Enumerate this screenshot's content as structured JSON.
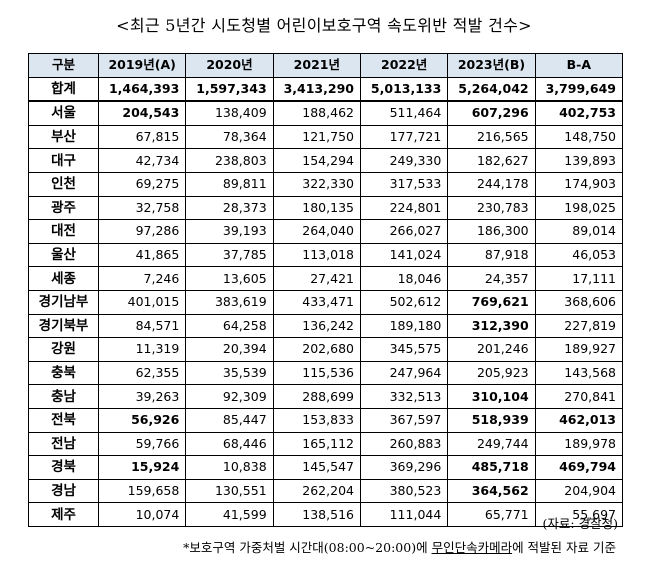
{
  "title": "<최근 5년간 시도청별 어린이보호구역 속도위반 적발 건수>",
  "table": {
    "headers": [
      "구분",
      "2019년(A)",
      "2020년",
      "2021년",
      "2022년",
      "2023년(B)",
      "B-A"
    ],
    "total": {
      "label": "합계",
      "values": [
        "1,464,393",
        "1,597,343",
        "3,413,290",
        "5,013,133",
        "5,264,042",
        "3,799,649"
      ]
    },
    "rows": [
      {
        "label": "서울",
        "values": [
          "204,543",
          "138,409",
          "188,462",
          "511,464",
          "607,296",
          "402,753"
        ],
        "bold": [
          true,
          false,
          false,
          false,
          true,
          true
        ]
      },
      {
        "label": "부산",
        "values": [
          "67,815",
          "78,364",
          "121,750",
          "177,721",
          "216,565",
          "148,750"
        ],
        "bold": [
          false,
          false,
          false,
          false,
          false,
          false
        ]
      },
      {
        "label": "대구",
        "values": [
          "42,734",
          "238,803",
          "154,294",
          "249,330",
          "182,627",
          "139,893"
        ],
        "bold": [
          false,
          false,
          false,
          false,
          false,
          false
        ]
      },
      {
        "label": "인천",
        "values": [
          "69,275",
          "89,811",
          "322,330",
          "317,533",
          "244,178",
          "174,903"
        ],
        "bold": [
          false,
          false,
          false,
          false,
          false,
          false
        ]
      },
      {
        "label": "광주",
        "values": [
          "32,758",
          "28,373",
          "180,135",
          "224,801",
          "230,783",
          "198,025"
        ],
        "bold": [
          false,
          false,
          false,
          false,
          false,
          false
        ]
      },
      {
        "label": "대전",
        "values": [
          "97,286",
          "39,193",
          "264,040",
          "266,027",
          "186,300",
          "89,014"
        ],
        "bold": [
          false,
          false,
          false,
          false,
          false,
          false
        ]
      },
      {
        "label": "울산",
        "values": [
          "41,865",
          "37,785",
          "113,018",
          "141,024",
          "87,918",
          "46,053"
        ],
        "bold": [
          false,
          false,
          false,
          false,
          false,
          false
        ]
      },
      {
        "label": "세종",
        "values": [
          "7,246",
          "13,605",
          "27,421",
          "18,046",
          "24,357",
          "17,111"
        ],
        "bold": [
          false,
          false,
          false,
          false,
          false,
          false
        ]
      },
      {
        "label": "경기남부",
        "values": [
          "401,015",
          "383,619",
          "433,471",
          "502,612",
          "769,621",
          "368,606"
        ],
        "bold": [
          false,
          false,
          false,
          false,
          true,
          false
        ]
      },
      {
        "label": "경기북부",
        "values": [
          "84,571",
          "64,258",
          "136,242",
          "189,180",
          "312,390",
          "227,819"
        ],
        "bold": [
          false,
          false,
          false,
          false,
          true,
          false
        ]
      },
      {
        "label": "강원",
        "values": [
          "11,319",
          "20,394",
          "202,680",
          "345,575",
          "201,246",
          "189,927"
        ],
        "bold": [
          false,
          false,
          false,
          false,
          false,
          false
        ]
      },
      {
        "label": "충북",
        "values": [
          "62,355",
          "35,539",
          "115,536",
          "247,964",
          "205,923",
          "143,568"
        ],
        "bold": [
          false,
          false,
          false,
          false,
          false,
          false
        ]
      },
      {
        "label": "충남",
        "values": [
          "39,263",
          "92,309",
          "288,699",
          "332,513",
          "310,104",
          "270,841"
        ],
        "bold": [
          false,
          false,
          false,
          false,
          true,
          false
        ]
      },
      {
        "label": "전북",
        "values": [
          "56,926",
          "85,447",
          "153,833",
          "367,597",
          "518,939",
          "462,013"
        ],
        "bold": [
          true,
          false,
          false,
          false,
          true,
          true
        ]
      },
      {
        "label": "전남",
        "values": [
          "59,766",
          "68,446",
          "165,112",
          "260,883",
          "249,744",
          "189,978"
        ],
        "bold": [
          false,
          false,
          false,
          false,
          false,
          false
        ]
      },
      {
        "label": "경북",
        "values": [
          "15,924",
          "10,838",
          "145,547",
          "369,296",
          "485,718",
          "469,794"
        ],
        "bold": [
          true,
          false,
          false,
          false,
          true,
          true
        ]
      },
      {
        "label": "경남",
        "values": [
          "159,658",
          "130,551",
          "262,204",
          "380,523",
          "364,562",
          "204,904"
        ],
        "bold": [
          false,
          false,
          false,
          false,
          true,
          false
        ]
      },
      {
        "label": "제주",
        "values": [
          "10,074",
          "41,599",
          "138,516",
          "111,044",
          "65,771",
          "55,697"
        ],
        "bold": [
          false,
          false,
          false,
          false,
          false,
          false
        ]
      }
    ]
  },
  "source": "(자료: 경찰청)",
  "note": {
    "prefix": "*보호구역 가중처벌 시간대(08:00~20:00)에 ",
    "underlined": "무인단속카메라",
    "suffix": "에 적발된 자료 기준"
  }
}
